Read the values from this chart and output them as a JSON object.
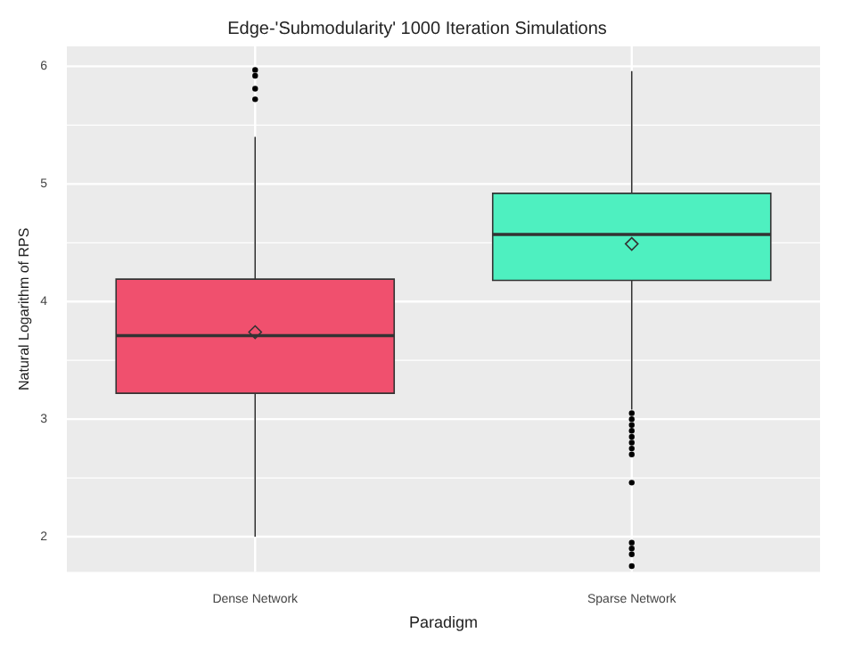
{
  "chart_data": {
    "type": "box",
    "title": "Edge-'Submodularity' 1000 Iteration Simulations",
    "xlabel": "Paradigm",
    "ylabel": "Natural Logarithm of RPS",
    "categories": [
      "Dense Network",
      "Sparse Network"
    ],
    "colors": [
      "#f0506e",
      "#4ef0c0"
    ],
    "boxes": [
      {
        "low": 2.0,
        "q1": 3.22,
        "median": 3.71,
        "q3": 4.19,
        "high": 5.4,
        "mean": 3.74,
        "outliers": [
          5.97,
          5.92,
          5.81,
          5.72
        ]
      },
      {
        "low": 3.08,
        "q1": 4.18,
        "median": 4.57,
        "q3": 4.92,
        "high": 5.96,
        "mean": 4.49,
        "outliers": [
          3.05,
          3.0,
          2.95,
          2.9,
          2.85,
          2.8,
          2.75,
          2.7,
          2.46,
          1.95,
          1.9,
          1.85,
          1.75
        ]
      }
    ],
    "ylim": [
      1.7,
      6.17
    ],
    "yticks": [
      2,
      3,
      4,
      5,
      6
    ],
    "grid": true
  }
}
